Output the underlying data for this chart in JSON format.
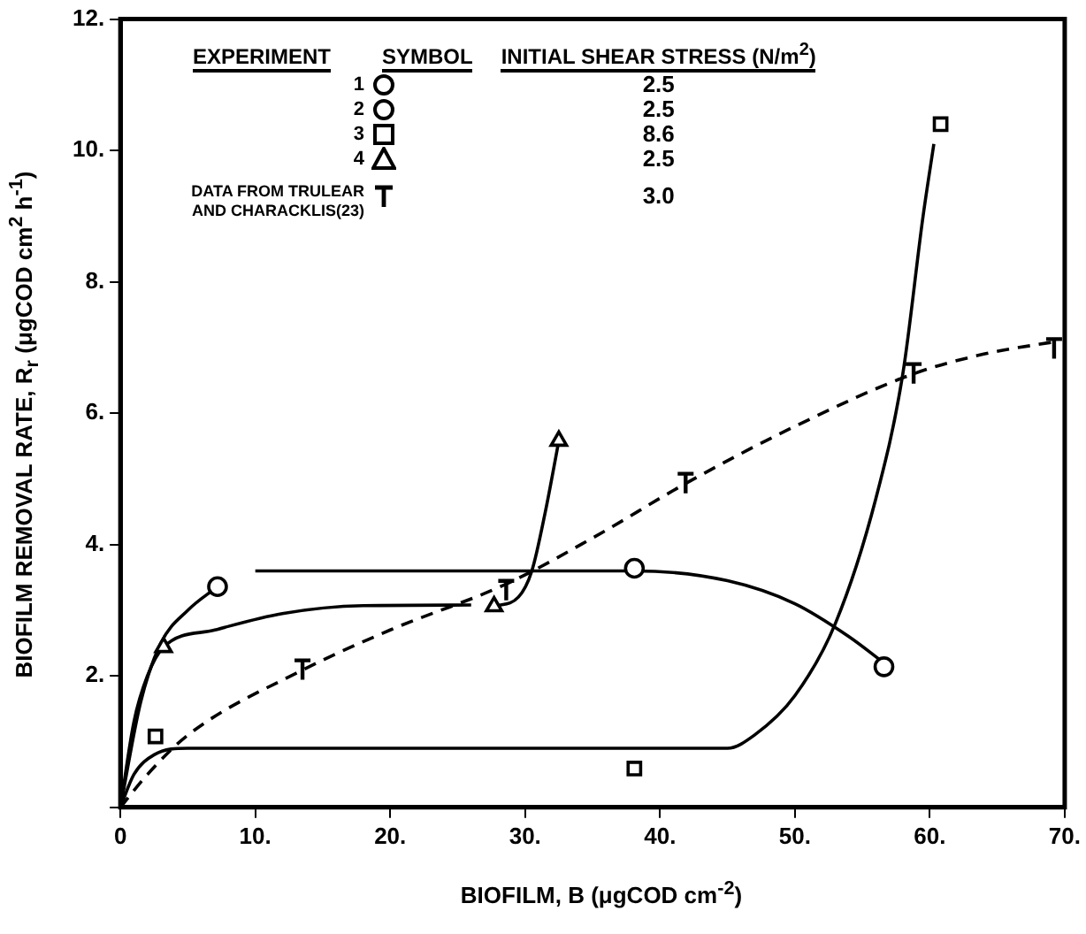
{
  "chart_data": {
    "type": "scatter",
    "xlabel": "BIOFILM, B (μgCOD cm$^{-2}$)",
    "ylabel": "BIOFILM REMOVAL RATE, R$_{r}$ (μgCOD cm$^{2}$ h$^{-1}$)",
    "xlim": [
      0,
      70
    ],
    "ylim": [
      0,
      12
    ],
    "xticks": [
      {
        "value": 0,
        "label": "0"
      },
      {
        "value": 10,
        "label": "10."
      },
      {
        "value": 20,
        "label": "20."
      },
      {
        "value": 30,
        "label": "30."
      },
      {
        "value": 40,
        "label": "40."
      },
      {
        "value": 50,
        "label": "50."
      },
      {
        "value": 60,
        "label": "60."
      },
      {
        "value": 70,
        "label": "70."
      }
    ],
    "yticks": [
      {
        "value": 0,
        "label": null
      },
      {
        "value": 2,
        "label": "2."
      },
      {
        "value": 4,
        "label": "4."
      },
      {
        "value": 6,
        "label": "6."
      },
      {
        "value": 8,
        "label": "8."
      },
      {
        "value": 10,
        "label": "10."
      },
      {
        "value": 12,
        "label": "12."
      }
    ],
    "grid": false,
    "legend": "top left",
    "annotations": [
      "EXPERIMENT",
      "SYMBOL",
      "INITIAL SHEAR STRESS (N/m$^{2}$)",
      "2.5",
      "2.5",
      "8.6",
      "2.5",
      "3.0"
    ],
    "series": [
      {
        "name": "1",
        "type": "scatter",
        "marker": "circle",
        "color": "#000000",
        "x": [
          7.2
        ],
        "values": [
          3.36
        ]
      },
      {
        "name": "2",
        "type": "scatter",
        "marker": "circle",
        "color": "#000000",
        "x": [
          38.1,
          56.6
        ],
        "values": [
          3.64,
          2.14
        ]
      },
      {
        "name": "3",
        "type": "scatter",
        "marker": "square",
        "color": "#000000",
        "x": [
          2.6,
          38.1,
          60.8
        ],
        "values": [
          1.08,
          0.59,
          10.4
        ]
      },
      {
        "name": "4",
        "type": "scatter",
        "marker": "triangle",
        "color": "#000000",
        "x": [
          3.2,
          27.7,
          32.5
        ],
        "values": [
          2.44,
          3.06,
          5.58
        ]
      },
      {
        "name": "DATA FROM TRULEAR AND CHARACKLIS(23)",
        "type": "scatter",
        "marker": "cross",
        "color": "#000000",
        "x": [
          13.5,
          28.6,
          41.9,
          58.8,
          69.4
        ],
        "values": [
          2.09,
          3.3,
          4.93,
          6.6,
          6.98
        ]
      },
      {
        "type": "line",
        "marker": "none",
        "line_style": "solid",
        "color": "#000000",
        "x": [
          0,
          1,
          2,
          3.2,
          7,
          12,
          18,
          26
        ],
        "values": [
          0,
          1.3,
          2.0,
          2.44,
          2.7,
          2.95,
          3.07,
          3.08
        ]
      },
      {
        "type": "line",
        "marker": "none",
        "line_style": "solid",
        "color": "#000000",
        "x": [
          0,
          1.5,
          3,
          5,
          7.2
        ],
        "values": [
          0,
          1.6,
          2.5,
          3.0,
          3.36
        ]
      },
      {
        "type": "line",
        "marker": "none",
        "line_style": "solid",
        "color": "#000000",
        "x": [
          27.7,
          29.5,
          30.5,
          31.5,
          32.5
        ],
        "values": [
          3.06,
          3.2,
          3.6,
          4.5,
          5.58
        ]
      },
      {
        "type": "line",
        "marker": "none",
        "line_style": "solid",
        "color": "#000000",
        "x": [
          10,
          38.1,
          45,
          50,
          54,
          56.6
        ],
        "values": [
          3.6,
          3.6,
          3.45,
          3.1,
          2.6,
          2.2
        ]
      },
      {
        "type": "line",
        "marker": "none",
        "line_style": "solid",
        "color": "#000000",
        "x": [
          0,
          1,
          2.5,
          5,
          45,
          47,
          50,
          53,
          56,
          58,
          59.5,
          60.3
        ],
        "values": [
          0,
          0.5,
          0.8,
          0.9,
          0.9,
          1.1,
          1.7,
          2.8,
          4.7,
          6.6,
          9,
          10.1
        ]
      },
      {
        "type": "line",
        "marker": "none",
        "line_style": "dashed",
        "color": "#000000",
        "x": [
          0,
          2,
          5,
          13.5,
          20,
          28.6,
          35,
          41.9,
          50,
          58.8,
          64,
          69.6
        ],
        "values": [
          0,
          0.5,
          1.1,
          2.09,
          2.7,
          3.4,
          4.1,
          4.93,
          5.8,
          6.6,
          6.9,
          7.1
        ]
      }
    ]
  }
}
